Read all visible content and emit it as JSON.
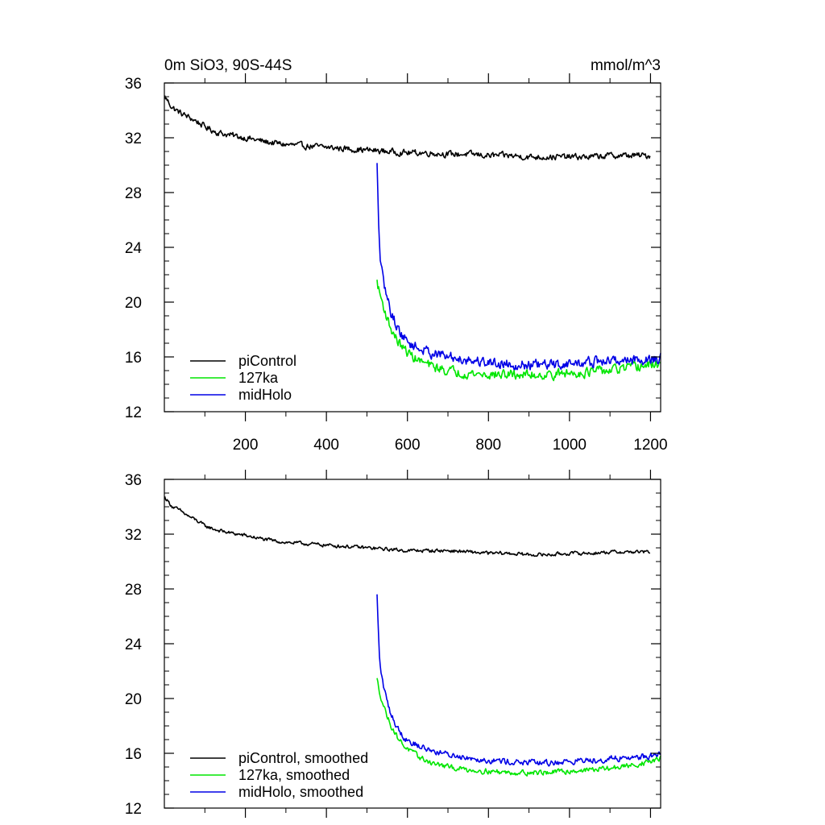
{
  "chart_data": [
    {
      "type": "line",
      "title": "0m SiO3, 90S-44S",
      "units": "mmol/m^3",
      "xlim": [
        0,
        1225
      ],
      "ylim": [
        12,
        36
      ],
      "xticks": [
        200,
        400,
        600,
        800,
        1000,
        1200
      ],
      "yticks": [
        12,
        16,
        20,
        24,
        28,
        32,
        36
      ],
      "xtick_labels_shown": true,
      "legend": "bottom-left",
      "grid": false,
      "series": [
        {
          "name": "piControl",
          "color": "#000000",
          "x": [
            1,
            20,
            40,
            60,
            80,
            100,
            130,
            160,
            200,
            250,
            300,
            350,
            400,
            450,
            500,
            550,
            600,
            650,
            700,
            750,
            800,
            850,
            900,
            950,
            1000,
            1050,
            1100,
            1150,
            1200
          ],
          "y": [
            35.0,
            34.2,
            33.8,
            33.5,
            33.2,
            32.8,
            32.4,
            32.2,
            32.0,
            31.7,
            31.5,
            31.4,
            31.3,
            31.2,
            31.1,
            31.0,
            30.9,
            30.9,
            30.8,
            30.8,
            30.7,
            30.7,
            30.6,
            30.6,
            30.6,
            30.6,
            30.7,
            30.7,
            30.7
          ],
          "noise": 0.35
        },
        {
          "name": "127ka",
          "color": "#00e600",
          "x": [
            525,
            530,
            540,
            550,
            560,
            575,
            590,
            610,
            630,
            660,
            700,
            750,
            800,
            850,
            900,
            950,
            1000,
            1050,
            1100,
            1150,
            1200,
            1225
          ],
          "y": [
            21.5,
            20.8,
            19.8,
            18.8,
            18.0,
            17.2,
            16.6,
            16.1,
            15.7,
            15.3,
            15.0,
            14.8,
            14.7,
            14.7,
            14.7,
            14.7,
            14.8,
            14.9,
            15.0,
            15.2,
            15.4,
            15.6
          ],
          "noise": 0.55
        },
        {
          "name": "midHolo",
          "color": "#0000e6",
          "x": [
            525,
            528,
            532,
            540,
            550,
            560,
            575,
            590,
            610,
            630,
            660,
            700,
            750,
            800,
            850,
            900,
            950,
            1000,
            1050,
            1100,
            1150,
            1200,
            1225
          ],
          "y": [
            30.0,
            26.5,
            23.5,
            21.5,
            20.3,
            19.2,
            18.2,
            17.4,
            16.9,
            16.6,
            16.3,
            16.0,
            15.8,
            15.6,
            15.5,
            15.4,
            15.4,
            15.5,
            15.6,
            15.7,
            15.8,
            15.8,
            15.9
          ],
          "noise": 0.6
        }
      ]
    },
    {
      "type": "line",
      "title": "",
      "xlim": [
        0,
        1225
      ],
      "ylim": [
        12,
        36
      ],
      "xticks": [
        200,
        400,
        600,
        800,
        1000,
        1200
      ],
      "yticks": [
        12,
        16,
        20,
        24,
        28,
        32,
        36
      ],
      "xtick_labels_shown": false,
      "legend": "bottom-left",
      "grid": false,
      "series": [
        {
          "name": "piControl, smoothed",
          "color": "#000000",
          "x": [
            1,
            20,
            40,
            60,
            80,
            100,
            130,
            160,
            200,
            250,
            300,
            350,
            400,
            450,
            500,
            550,
            600,
            650,
            700,
            750,
            800,
            850,
            900,
            950,
            1000,
            1050,
            1100,
            1150,
            1200
          ],
          "y": [
            34.7,
            34.0,
            33.7,
            33.3,
            33.0,
            32.6,
            32.3,
            32.1,
            31.9,
            31.6,
            31.4,
            31.3,
            31.2,
            31.1,
            31.0,
            30.9,
            30.8,
            30.8,
            30.8,
            30.7,
            30.6,
            30.6,
            30.5,
            30.5,
            30.6,
            30.6,
            30.7,
            30.7,
            30.7
          ],
          "noise": 0.2
        },
        {
          "name": "127ka, smoothed",
          "color": "#00e600",
          "x": [
            525,
            530,
            540,
            550,
            560,
            575,
            590,
            610,
            630,
            660,
            700,
            750,
            800,
            850,
            900,
            950,
            1000,
            1050,
            1100,
            1150,
            1200,
            1225
          ],
          "y": [
            21.4,
            20.6,
            19.6,
            18.7,
            18.0,
            17.2,
            16.6,
            16.1,
            15.7,
            15.3,
            15.0,
            14.8,
            14.7,
            14.6,
            14.6,
            14.6,
            14.7,
            14.8,
            14.9,
            15.1,
            15.4,
            15.6
          ],
          "noise": 0.3
        },
        {
          "name": "midHolo, smoothed",
          "color": "#0000e6",
          "x": [
            525,
            528,
            532,
            540,
            550,
            560,
            575,
            590,
            610,
            630,
            660,
            700,
            750,
            800,
            850,
            900,
            950,
            1000,
            1050,
            1100,
            1150,
            1200,
            1225
          ],
          "y": [
            27.5,
            25.0,
            22.5,
            21.0,
            19.8,
            18.8,
            17.9,
            17.2,
            16.8,
            16.5,
            16.2,
            15.9,
            15.7,
            15.5,
            15.4,
            15.3,
            15.3,
            15.4,
            15.5,
            15.6,
            15.7,
            15.8,
            15.9
          ],
          "noise": 0.35
        }
      ]
    }
  ]
}
